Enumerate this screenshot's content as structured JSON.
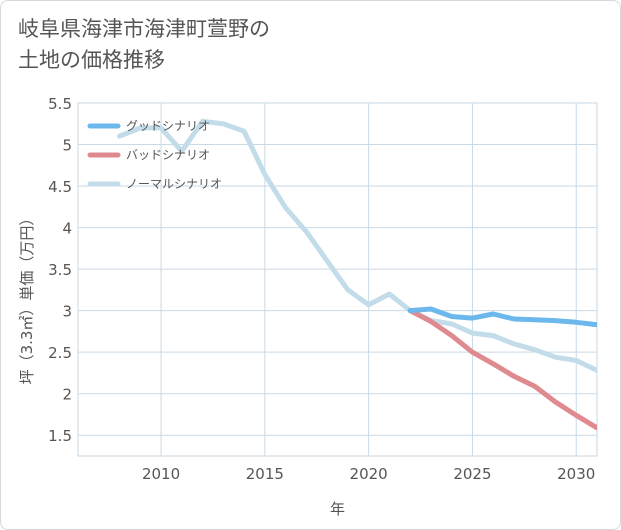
{
  "title_lines": [
    "岐阜県海津市海津町萱野の",
    "土地の価格推移"
  ],
  "colors": {
    "good": "#6cb8ec",
    "bad": "#de8a8f",
    "normal": "#c3dcea",
    "grid": "#c9d9e6",
    "text": "#555555"
  },
  "chart_data": {
    "type": "line",
    "xlabel": "年",
    "ylabel": "坪（3.3㎡）単価（万円）",
    "xlim": [
      2006,
      2031
    ],
    "ylim": [
      1.25,
      5.5
    ],
    "x_ticks": [
      2010,
      2015,
      2020,
      2025,
      2030
    ],
    "y_ticks": [
      1.5,
      2,
      2.5,
      3,
      3.5,
      4,
      4.5,
      5,
      5.5
    ],
    "y_tick_labels": [
      "1.5",
      "2",
      "2.5",
      "3",
      "3.5",
      "4",
      "4.5",
      "5",
      "5.5"
    ],
    "grid": true,
    "legend_position": "top-left",
    "series": [
      {
        "name": "グッドシナリオ",
        "color_key": "good",
        "x": [
          2022,
          2023,
          2024,
          2025,
          2026,
          2027,
          2028,
          2029,
          2030,
          2031
        ],
        "y": [
          3.0,
          3.02,
          2.93,
          2.91,
          2.96,
          2.9,
          2.89,
          2.88,
          2.86,
          2.83
        ]
      },
      {
        "name": "バッドシナリオ",
        "color_key": "bad",
        "x": [
          2022,
          2023,
          2024,
          2025,
          2026,
          2027,
          2028,
          2029,
          2030,
          2031
        ],
        "y": [
          3.0,
          2.87,
          2.7,
          2.5,
          2.36,
          2.21,
          2.09,
          1.9,
          1.74,
          1.59
        ]
      },
      {
        "name": "ノーマルシナリオ",
        "color_key": "normal",
        "x": [
          2008,
          2009,
          2010,
          2011,
          2012,
          2013,
          2014,
          2015,
          2016,
          2017,
          2018,
          2019,
          2020,
          2021,
          2022,
          2023,
          2024,
          2025,
          2026,
          2027,
          2028,
          2029,
          2030,
          2031
        ],
        "y": [
          5.1,
          5.2,
          5.2,
          4.92,
          5.28,
          5.25,
          5.16,
          4.64,
          4.24,
          3.95,
          3.6,
          3.25,
          3.07,
          3.2,
          3.0,
          2.88,
          2.84,
          2.73,
          2.7,
          2.6,
          2.53,
          2.44,
          2.4,
          2.28
        ]
      }
    ]
  }
}
